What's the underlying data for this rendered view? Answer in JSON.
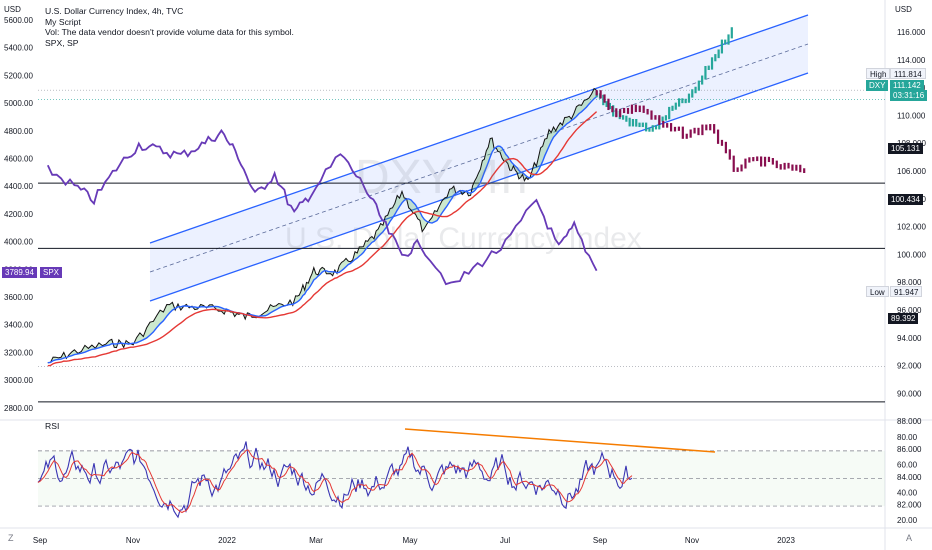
{
  "header": {
    "title": "U.S. Dollar Currency Index, 4h, TVC",
    "script": "My Script",
    "vol_note": "Vol: The data vendor doesn't provide volume data for this symbol.",
    "compare": "SPX, SP"
  },
  "watermark": {
    "symbol": "DXY, 4h",
    "name": "U.S. Dollar Currency Index"
  },
  "axis_units": {
    "left": "USD",
    "right": "USD"
  },
  "price_labels": {
    "high_label": "High",
    "high_value": "111.814",
    "dxy_label": "DXY",
    "dxy_value": "111.142",
    "countdown": "03:31:16",
    "low_label": "Low",
    "low_value": "91.947",
    "spx_value": "3789.94",
    "spx_label": "SPX",
    "levels": [
      "105.131",
      "100.434",
      "89.392"
    ]
  },
  "rsi_title": "RSI",
  "colors": {
    "dxy_up": "#0a7d1f",
    "dxy_down": "#111111",
    "ema_fast": "#2962ff",
    "ema_slow": "#e53935",
    "spx": "#673ab7",
    "channel": "#2962ff",
    "projection_up": "#26a69a",
    "projection_down": "#880e4f",
    "rsi": "#3a35b3",
    "rsi_ma": "#e53935",
    "rsi_trend": "#f57c00"
  },
  "icons": {
    "bottom_left": "z-icon",
    "bottom_right": "auto-scale-icon"
  },
  "chart_data": [
    {
      "type": "line",
      "title": "U.S. Dollar Currency Index, 4h, TVC",
      "x_tick_labels": [
        "Sep",
        "Nov",
        "2022",
        "Mar",
        "May",
        "Jul",
        "Sep",
        "Nov",
        "2023"
      ],
      "y_right_ticks": [
        "116.000",
        "114.000",
        "112.000",
        "110.000",
        "108.000",
        "106.000",
        "104.000",
        "102.000",
        "100.000",
        "98.000",
        "96.000",
        "94.000",
        "92.000",
        "90.000",
        "88.000",
        "86.000",
        "84.000",
        "82.000"
      ],
      "y_left_ticks": [
        "5600.00",
        "5400.00",
        "5200.00",
        "5000.00",
        "4800.00",
        "4600.00",
        "4400.00",
        "4200.00",
        "4000.00",
        "3800.00",
        "3600.00",
        "3400.00",
        "3200.00",
        "3000.00",
        "2800.00"
      ],
      "ylim_right": [
        80.5,
        117
      ],
      "ylim_left": [
        2750,
        5700
      ],
      "series": [
        {
          "name": "DXY",
          "x": [
            "2021-09-01",
            "2021-09-20",
            "2021-10-15",
            "2021-11-01",
            "2021-11-25",
            "2021-12-15",
            "2022-01-05",
            "2022-01-20",
            "2022-02-05",
            "2022-02-25",
            "2022-03-10",
            "2022-03-25",
            "2022-04-10",
            "2022-04-25",
            "2022-05-12",
            "2022-05-28",
            "2022-06-15",
            "2022-06-30",
            "2022-07-14",
            "2022-07-28",
            "2022-08-10",
            "2022-08-25",
            "2022-09-10",
            "2022-09-28"
          ],
          "y": [
            92.2,
            93.0,
            93.6,
            93.6,
            96.3,
            96.2,
            96.0,
            95.5,
            96.0,
            96.7,
            98.8,
            98.7,
            100.1,
            101.6,
            104.5,
            101.6,
            104.7,
            104.5,
            108.3,
            106.3,
            105.2,
            108.8,
            110.0,
            111.8
          ]
        },
        {
          "name": "SPX",
          "x": [
            "2021-09-01",
            "2021-09-20",
            "2021-10-04",
            "2021-10-20",
            "2021-11-05",
            "2021-11-20",
            "2021-12-05",
            "2021-12-20",
            "2022-01-03",
            "2022-01-15",
            "2022-01-27",
            "2022-02-10",
            "2022-02-24",
            "2022-03-08",
            "2022-03-29",
            "2022-04-15",
            "2022-04-28",
            "2022-05-12",
            "2022-05-25",
            "2022-06-16",
            "2022-07-05",
            "2022-07-25",
            "2022-08-16",
            "2022-09-01",
            "2022-09-12",
            "2022-09-28"
          ],
          "y": [
            4520,
            4400,
            4300,
            4530,
            4700,
            4660,
            4620,
            4700,
            4790,
            4620,
            4330,
            4490,
            4200,
            4350,
            4630,
            4400,
            4150,
            3900,
            3990,
            3670,
            3830,
            3980,
            4300,
            3950,
            4110,
            3790
          ]
        }
      ],
      "projection": {
        "path_up": [
          111.8,
          110.2,
          109.4,
          109.0,
          110.5,
          111.5,
          114.0,
          116.2
        ],
        "path_down": [
          111.8,
          110.2,
          110.6,
          109.2,
          108.6,
          109.3,
          106.2,
          106.8,
          106.3,
          106.0
        ]
      },
      "horizontal_levels": [
        105.131,
        100.434,
        89.392
      ],
      "high": 111.814,
      "low": 91.947
    },
    {
      "type": "line",
      "title": "RSI",
      "y_ticks": [
        "80.00",
        "60.00",
        "40.00",
        "20.00"
      ],
      "ylim": [
        17,
        90
      ],
      "bands": {
        "upper": 70,
        "middle": 50,
        "lower": 30
      }
    }
  ]
}
